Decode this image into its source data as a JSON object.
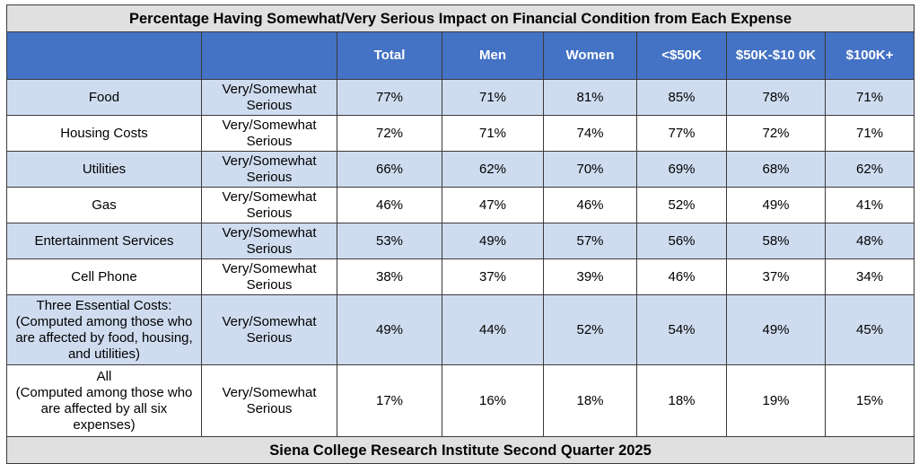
{
  "title": "Percentage Having Somewhat/Very Serious Impact on Financial Condition from Each Expense",
  "footer": "Siena College Research Institute Second Quarter 2025",
  "colors": {
    "header": "#4472c4",
    "shade": "#cfdcf0",
    "titlebar": "#e0e0e0"
  },
  "chart_data": {
    "type": "table",
    "title": "Percentage Having Somewhat/Very Serious Impact on Financial Condition from Each Expense",
    "columns": [
      "",
      "",
      "Total",
      "Men",
      "Women",
      "<$50K",
      "$50K-$100K",
      "$100K+"
    ],
    "column_labels_display": [
      "",
      "",
      "Total",
      "Men",
      "Women",
      "<$50K",
      "$50K-$10 0K",
      "$100K+"
    ],
    "rows": [
      {
        "label": "Food",
        "measure": "Very/Somewhat Serious",
        "values": [
          "77%",
          "71%",
          "81%",
          "85%",
          "78%",
          "71%"
        ]
      },
      {
        "label": "Housing Costs",
        "measure": "Very/Somewhat Serious",
        "values": [
          "72%",
          "71%",
          "74%",
          "77%",
          "72%",
          "71%"
        ]
      },
      {
        "label": "Utilities",
        "measure": "Very/Somewhat Serious",
        "values": [
          "66%",
          "62%",
          "70%",
          "69%",
          "68%",
          "62%"
        ]
      },
      {
        "label": "Gas",
        "measure": "Very/Somewhat Serious",
        "values": [
          "46%",
          "47%",
          "46%",
          "52%",
          "49%",
          "41%"
        ]
      },
      {
        "label": "Entertainment Services",
        "measure": "Very/Somewhat Serious",
        "values": [
          "53%",
          "49%",
          "57%",
          "56%",
          "58%",
          "48%"
        ]
      },
      {
        "label": "Cell Phone",
        "measure": "Very/Somewhat Serious",
        "values": [
          "38%",
          "37%",
          "39%",
          "46%",
          "37%",
          "34%"
        ]
      },
      {
        "label": "Three Essential Costs:\n(Computed among those who are affected by food, housing, and utilities)",
        "measure": "Very/Somewhat Serious",
        "values": [
          "49%",
          "44%",
          "52%",
          "54%",
          "49%",
          "45%"
        ]
      },
      {
        "label": "All\n(Computed among those who are affected by all six expenses)",
        "measure": "Very/Somewhat Serious",
        "values": [
          "17%",
          "16%",
          "18%",
          "18%",
          "19%",
          "15%"
        ]
      }
    ],
    "footer": "Siena College Research Institute Second Quarter 2025"
  }
}
